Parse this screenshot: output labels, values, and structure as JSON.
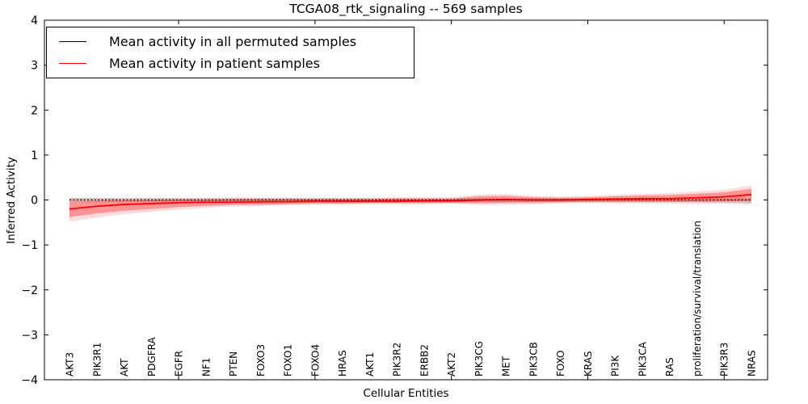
{
  "title": "TCGA08_rtk_signaling -- 569 samples",
  "chart_data": {
    "type": "line",
    "title": "TCGA08_rtk_signaling -- 569 samples",
    "xlabel": "Cellular Entities",
    "ylabel": "Inferred Activity",
    "ylim": [
      -4,
      4
    ],
    "yticks": [
      4,
      3,
      2,
      1,
      0,
      -1,
      -2,
      -3,
      -4
    ],
    "xtick_indices": [
      4,
      9,
      14,
      19,
      24
    ],
    "grid": false,
    "legend_position": "upper left",
    "categories": [
      "AKT3",
      "PIK3R1",
      "AKT",
      "PDGFRA",
      "EGFR",
      "NF1",
      "PTEN",
      "FOXO3",
      "FOXO1",
      "FOXO4",
      "HRAS",
      "AKT1",
      "PIK3R2",
      "ERBB2",
      "AKT2",
      "PIK3CG",
      "MET",
      "PIK3CB",
      "FOXO",
      "KRAS",
      "PI3K",
      "PIK3CA",
      "RAS",
      "proliferation/survival/translation",
      "PIK3R3",
      "NRAS"
    ],
    "series": [
      {
        "name": "Mean activity in all permuted samples",
        "color": "#000000",
        "line_style": "dashed",
        "values": [
          0,
          0,
          0,
          0,
          0,
          0,
          0,
          0,
          0,
          0,
          0,
          0,
          0,
          0,
          0,
          0,
          0,
          0,
          0,
          0,
          0,
          0,
          0,
          0,
          0,
          0
        ],
        "band_upper": [
          0.04,
          0.04,
          0.04,
          0.04,
          0.04,
          0.04,
          0.04,
          0.04,
          0.04,
          0.04,
          0.04,
          0.04,
          0.04,
          0.04,
          0.04,
          0.04,
          0.04,
          0.04,
          0.04,
          0.04,
          0.04,
          0.04,
          0.04,
          0.04,
          0.04,
          0.04
        ],
        "band_lower": [
          -0.05,
          -0.05,
          -0.05,
          -0.05,
          -0.05,
          -0.05,
          -0.05,
          -0.05,
          -0.05,
          -0.05,
          -0.05,
          -0.05,
          -0.05,
          -0.05,
          -0.05,
          -0.05,
          -0.05,
          -0.05,
          -0.05,
          -0.05,
          -0.05,
          -0.05,
          -0.05,
          -0.05,
          -0.06,
          -0.07
        ],
        "band_color": "rgba(0,0,0,0.16)"
      },
      {
        "name": "Mean activity in patient samples",
        "color": "#ff0000",
        "line_style": "solid",
        "values": [
          -0.2,
          -0.14,
          -0.1,
          -0.08,
          -0.06,
          -0.05,
          -0.05,
          -0.04,
          -0.04,
          -0.03,
          -0.03,
          -0.03,
          -0.03,
          -0.02,
          -0.02,
          0.0,
          0.01,
          0.0,
          0.0,
          0.01,
          0.02,
          0.03,
          0.03,
          0.05,
          0.07,
          0.12
        ],
        "band_upper": [
          -0.04,
          -0.02,
          -0.01,
          0.0,
          0.01,
          0.01,
          0.02,
          0.02,
          0.02,
          0.02,
          0.02,
          0.02,
          0.03,
          0.03,
          0.03,
          0.08,
          0.09,
          0.06,
          0.05,
          0.06,
          0.08,
          0.1,
          0.11,
          0.14,
          0.17,
          0.25
        ],
        "band_lower": [
          -0.38,
          -0.3,
          -0.24,
          -0.2,
          -0.16,
          -0.13,
          -0.11,
          -0.1,
          -0.09,
          -0.08,
          -0.08,
          -0.07,
          -0.07,
          -0.07,
          -0.06,
          -0.07,
          -0.06,
          -0.06,
          -0.05,
          -0.04,
          -0.04,
          -0.04,
          -0.04,
          -0.04,
          -0.03,
          -0.02
        ],
        "band_color": "rgba(255,0,0,0.32)",
        "band_outer_color": "rgba(255,0,0,0.14)"
      }
    ]
  }
}
